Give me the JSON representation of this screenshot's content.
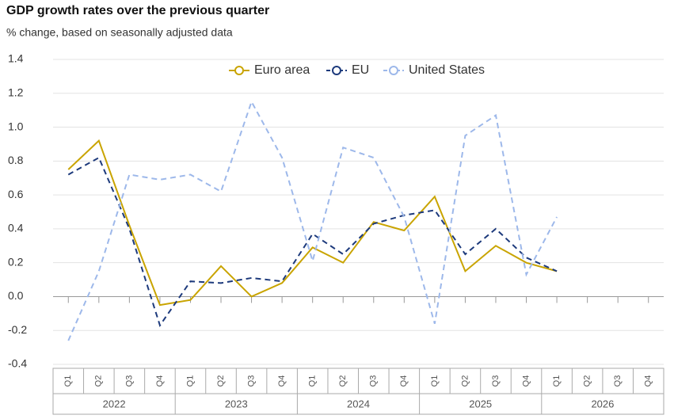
{
  "chart_data": {
    "type": "line",
    "title": "GDP growth rates over the previous quarter",
    "subtitle": "% change, based on seasonally adjusted data",
    "categories": [
      "Q1",
      "Q2",
      "Q3",
      "Q4",
      "Q1",
      "Q2",
      "Q3",
      "Q4",
      "Q1",
      "Q2",
      "Q3",
      "Q4",
      "Q1",
      "Q2",
      "Q3",
      "Q4",
      "Q1",
      "Q2",
      "Q3",
      "Q4"
    ],
    "x_groups": [
      "2022",
      "2023",
      "2024",
      "2025",
      "2026"
    ],
    "series": [
      {
        "name": "Euro area",
        "color": "#c9a400",
        "dashed": false,
        "values": [
          0.75,
          0.92,
          0.42,
          -0.05,
          -0.02,
          0.18,
          0.0,
          0.08,
          0.29,
          0.2,
          0.44,
          0.39,
          0.59,
          0.15,
          0.3,
          0.2,
          0.15,
          null,
          null,
          null
        ]
      },
      {
        "name": "EU",
        "color": "#1d3a7c",
        "dashed": true,
        "values": [
          0.72,
          0.82,
          0.4,
          -0.17,
          0.09,
          0.08,
          0.11,
          0.09,
          0.37,
          0.25,
          0.43,
          0.48,
          0.51,
          0.25,
          0.4,
          0.23,
          0.15,
          null,
          null,
          null
        ]
      },
      {
        "name": "United States",
        "color": "#9db8ea",
        "dashed": true,
        "values": [
          -0.26,
          0.15,
          0.72,
          0.69,
          0.72,
          0.62,
          1.15,
          0.82,
          0.21,
          0.88,
          0.82,
          0.47,
          -0.16,
          0.95,
          1.07,
          0.13,
          0.47,
          null,
          null,
          null
        ]
      }
    ],
    "ylim": [
      -0.4,
      1.4
    ],
    "yticks": [
      {
        "value": -0.4,
        "label": "-0.4"
      },
      -0.2,
      {
        "value": 0,
        "label": "0.0"
      },
      0.2,
      0.4,
      0.6,
      0.8,
      {
        "value": 1,
        "label": "1.0"
      },
      1.2,
      1.4
    ],
    "grid": true,
    "legend": "top"
  }
}
